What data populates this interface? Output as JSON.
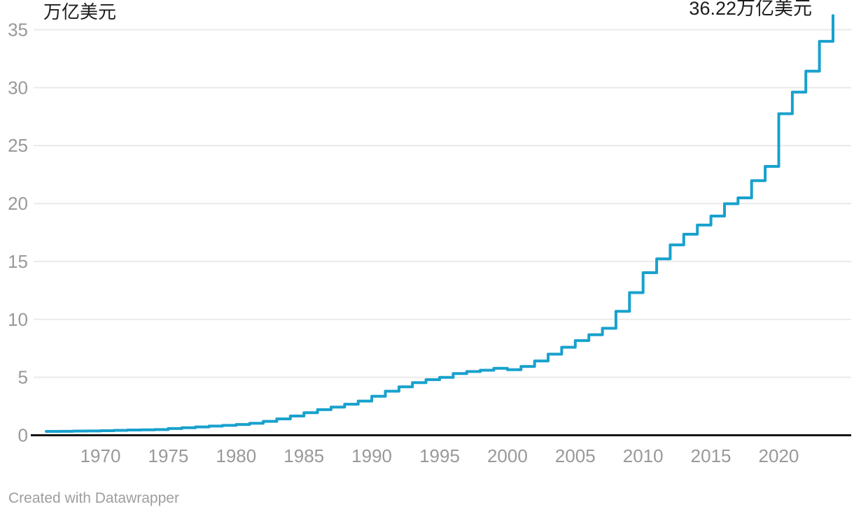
{
  "labels": {
    "unit": "万亿美元",
    "end_value": "36.22万亿美元",
    "footer": "Created with Datawrapper"
  },
  "colors": {
    "line": "#18a1cd",
    "grid": "#eaeaea",
    "axis": "#151515",
    "tick_text": "#999999",
    "label_text": "#1d1d1d",
    "footer_text": "#9e9e9e"
  },
  "chart_data": {
    "type": "line",
    "step": true,
    "title": "",
    "unit_label": "万亿美元",
    "end_annotation": "36.22万亿美元",
    "x": [
      1966,
      1967,
      1968,
      1969,
      1970,
      1971,
      1972,
      1973,
      1974,
      1975,
      1976,
      1977,
      1978,
      1979,
      1980,
      1981,
      1982,
      1983,
      1984,
      1985,
      1986,
      1987,
      1988,
      1989,
      1990,
      1991,
      1992,
      1993,
      1994,
      1995,
      1996,
      1997,
      1998,
      1999,
      2000,
      2001,
      2002,
      2003,
      2004,
      2005,
      2006,
      2007,
      2008,
      2009,
      2010,
      2011,
      2012,
      2013,
      2014,
      2015,
      2016,
      2017,
      2018,
      2019,
      2020,
      2021,
      2022,
      2023,
      2024
    ],
    "values": [
      0.33,
      0.34,
      0.36,
      0.37,
      0.39,
      0.42,
      0.45,
      0.47,
      0.49,
      0.58,
      0.65,
      0.72,
      0.79,
      0.85,
      0.93,
      1.03,
      1.2,
      1.41,
      1.66,
      1.95,
      2.21,
      2.43,
      2.68,
      2.95,
      3.36,
      3.8,
      4.18,
      4.54,
      4.8,
      4.99,
      5.32,
      5.5,
      5.61,
      5.78,
      5.66,
      5.94,
      6.41,
      7.0,
      7.6,
      8.17,
      8.68,
      9.23,
      10.7,
      12.31,
      14.03,
      15.22,
      16.43,
      17.35,
      18.14,
      18.92,
      19.98,
      20.49,
      21.97,
      23.2,
      27.75,
      29.62,
      31.42,
      34.0,
      36.22
    ],
    "x_ticks": [
      1970,
      1975,
      1980,
      1985,
      1990,
      1995,
      2000,
      2005,
      2010,
      2015,
      2020
    ],
    "y_ticks": [
      0,
      5,
      10,
      15,
      20,
      25,
      30,
      35
    ],
    "xlim": [
      1966,
      2024
    ],
    "ylim": [
      0,
      36.5
    ],
    "grid": "horizontal",
    "legend": "none"
  }
}
